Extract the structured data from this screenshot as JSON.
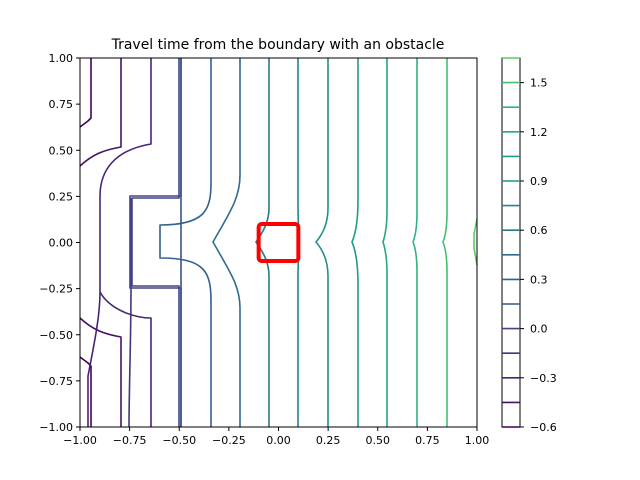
{
  "chart_data": {
    "type": "contour",
    "title": "Travel time from the boundary with an obstacle",
    "xlabel": "",
    "ylabel": "",
    "xlim": [
      -1.0,
      1.0
    ],
    "ylim": [
      -1.0,
      1.0
    ],
    "x_ticks": [
      "−1.00",
      "−0.75",
      "−0.50",
      "−0.25",
      "0.00",
      "0.25",
      "0.50",
      "0.75",
      "1.00"
    ],
    "y_ticks": [
      "−1.00",
      "−0.75",
      "−0.50",
      "−0.25",
      "0.00",
      "0.25",
      "0.50",
      "0.75",
      "1.00"
    ],
    "grid": false,
    "colormap": "viridis",
    "levels": [
      -0.6,
      -0.45,
      -0.3,
      -0.15,
      0.0,
      0.15,
      0.3,
      0.45,
      0.6,
      0.75,
      0.9,
      1.05,
      1.2,
      1.35,
      1.5,
      1.65
    ],
    "level_colors": [
      "#440154",
      "#471365",
      "#482475",
      "#463480",
      "#414487",
      "#3b528b",
      "#355f8d",
      "#2f6c8e",
      "#2a788e",
      "#25848e",
      "#21918c",
      "#1e9c89",
      "#22a884",
      "#2fb47c",
      "#44bf70",
      "#5ec962"
    ],
    "colorbar_ticks": [
      "−0.6",
      "−0.3",
      "0.0",
      "0.3",
      "0.6",
      "0.9",
      "1.2",
      "1.5"
    ],
    "obstacle": {
      "shape": "square",
      "x_range": [
        -0.1,
        0.1
      ],
      "y_range": [
        -0.1,
        0.1
      ],
      "color": "#ff0000"
    },
    "zero_contour_region": {
      "description": "polygon",
      "points": [
        [
          -0.5,
          1.0
        ],
        [
          -0.5,
          0.25
        ],
        [
          -0.75,
          0.25
        ],
        [
          -0.75,
          -0.25
        ],
        [
          -0.5,
          -0.25
        ],
        [
          -0.5,
          -1.0
        ]
      ]
    }
  }
}
